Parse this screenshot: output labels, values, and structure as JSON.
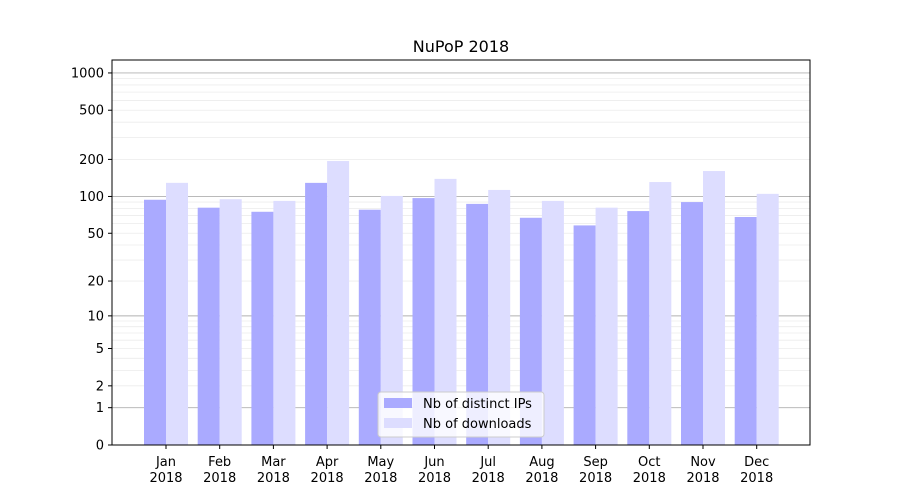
{
  "chart_data": {
    "type": "bar",
    "title": "NuPoP 2018",
    "xlabel": "",
    "ylabel": "",
    "yscale": "symlog",
    "ylim": [
      0,
      1300
    ],
    "yticks": [
      0,
      1,
      2,
      5,
      10,
      20,
      50,
      100,
      200,
      500,
      1000
    ],
    "grid": true,
    "legend_position": "bottom-center",
    "categories": [
      "Jan\n2018",
      "Feb\n2018",
      "Mar\n2018",
      "Apr\n2018",
      "May\n2018",
      "Jun\n2018",
      "Jul\n2018",
      "Aug\n2018",
      "Sep\n2018",
      "Oct\n2018",
      "Nov\n2018",
      "Dec\n2018"
    ],
    "series": [
      {
        "name": "Nb of distinct IPs",
        "color": "#aaaaff",
        "values": [
          94,
          81,
          75,
          129,
          78,
          97,
          87,
          67,
          58,
          76,
          90,
          68
        ]
      },
      {
        "name": "Nb of downloads",
        "color": "#ddddff",
        "values": [
          129,
          95,
          92,
          194,
          101,
          139,
          113,
          92,
          81,
          131,
          161,
          105
        ]
      }
    ]
  }
}
